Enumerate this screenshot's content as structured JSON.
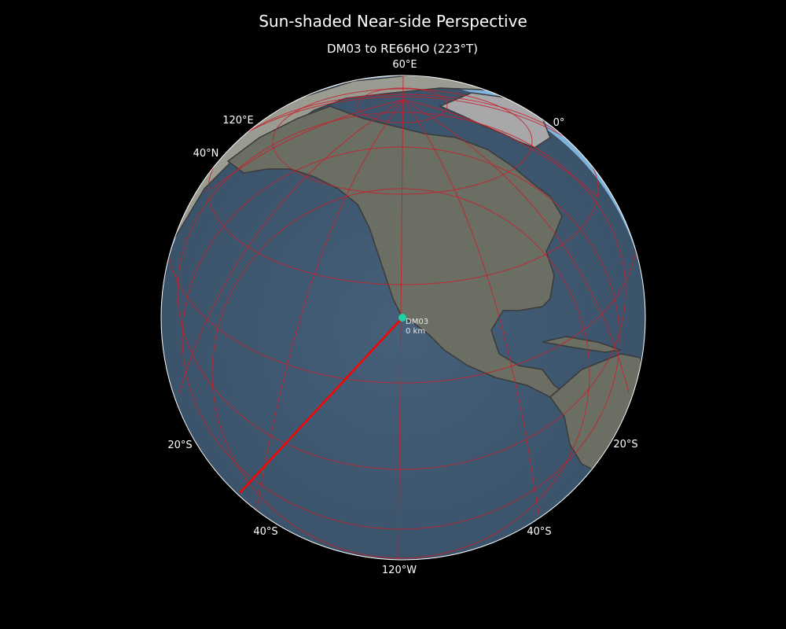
{
  "title": "Sun-shaded Near-side Perspective",
  "subtitle": "DM03 to RE66HO (223°T)",
  "grid_labels": {
    "top": "60°E",
    "upper_left": "120°E",
    "upper_right": "0°",
    "left_lat": "40°N",
    "left_20s": "20°S",
    "right_20s": "20°S",
    "left_40s": "40°S",
    "right_40s": "40°S",
    "bottom": "120°W"
  },
  "marker": {
    "name": "DM03",
    "distance": "0 km",
    "color": "#1fd1a0"
  },
  "path": {
    "from": "DM03",
    "to": "RE66HO",
    "bearing": "223°T",
    "color": "#ff0000"
  },
  "colors": {
    "background": "#000000",
    "ocean": "#3f5a70",
    "land": "#6b6e62",
    "gridlines": "#c8202a",
    "day_limb": "#7fb3d9"
  }
}
